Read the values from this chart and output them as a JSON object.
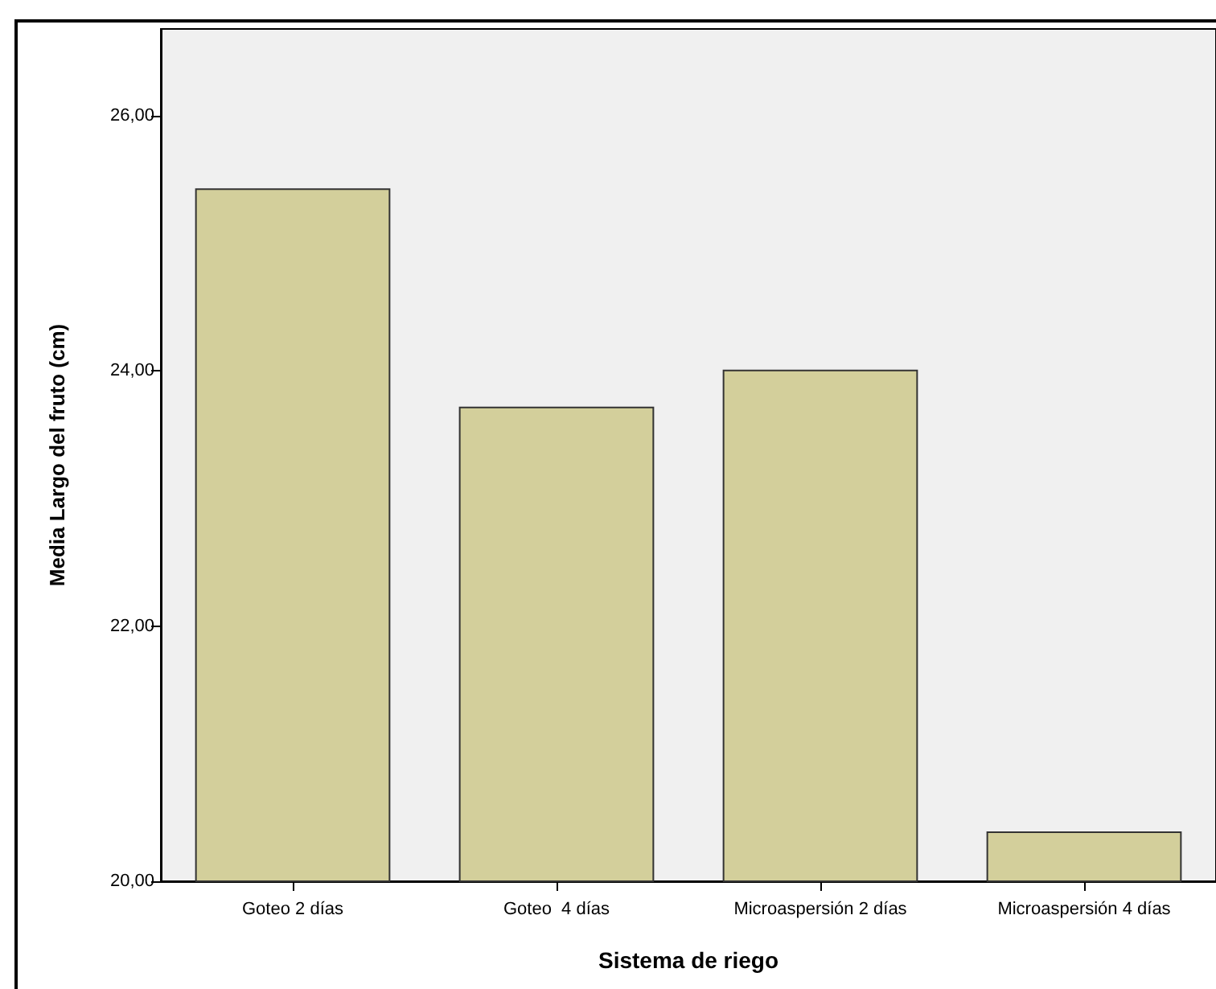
{
  "chart_data": {
    "type": "bar",
    "xlabel": "Sistema de riego",
    "ylabel": "Media Largo del fruto (cm)",
    "categories": [
      "Goteo 2 días",
      "Goteo  4 días",
      "Microaspersión 2 días",
      "Microaspersión 4 días"
    ],
    "values": [
      25.43,
      23.72,
      24.01,
      20.39
    ],
    "color": "#d3cf9b",
    "ylim": [
      20,
      26.68
    ],
    "yticks": [
      {
        "value": 20,
        "label": "20,00"
      },
      {
        "value": 22,
        "label": "22,00"
      },
      {
        "value": 24,
        "label": "24,00"
      },
      {
        "value": 26,
        "label": "26,00"
      }
    ],
    "grid": false
  }
}
